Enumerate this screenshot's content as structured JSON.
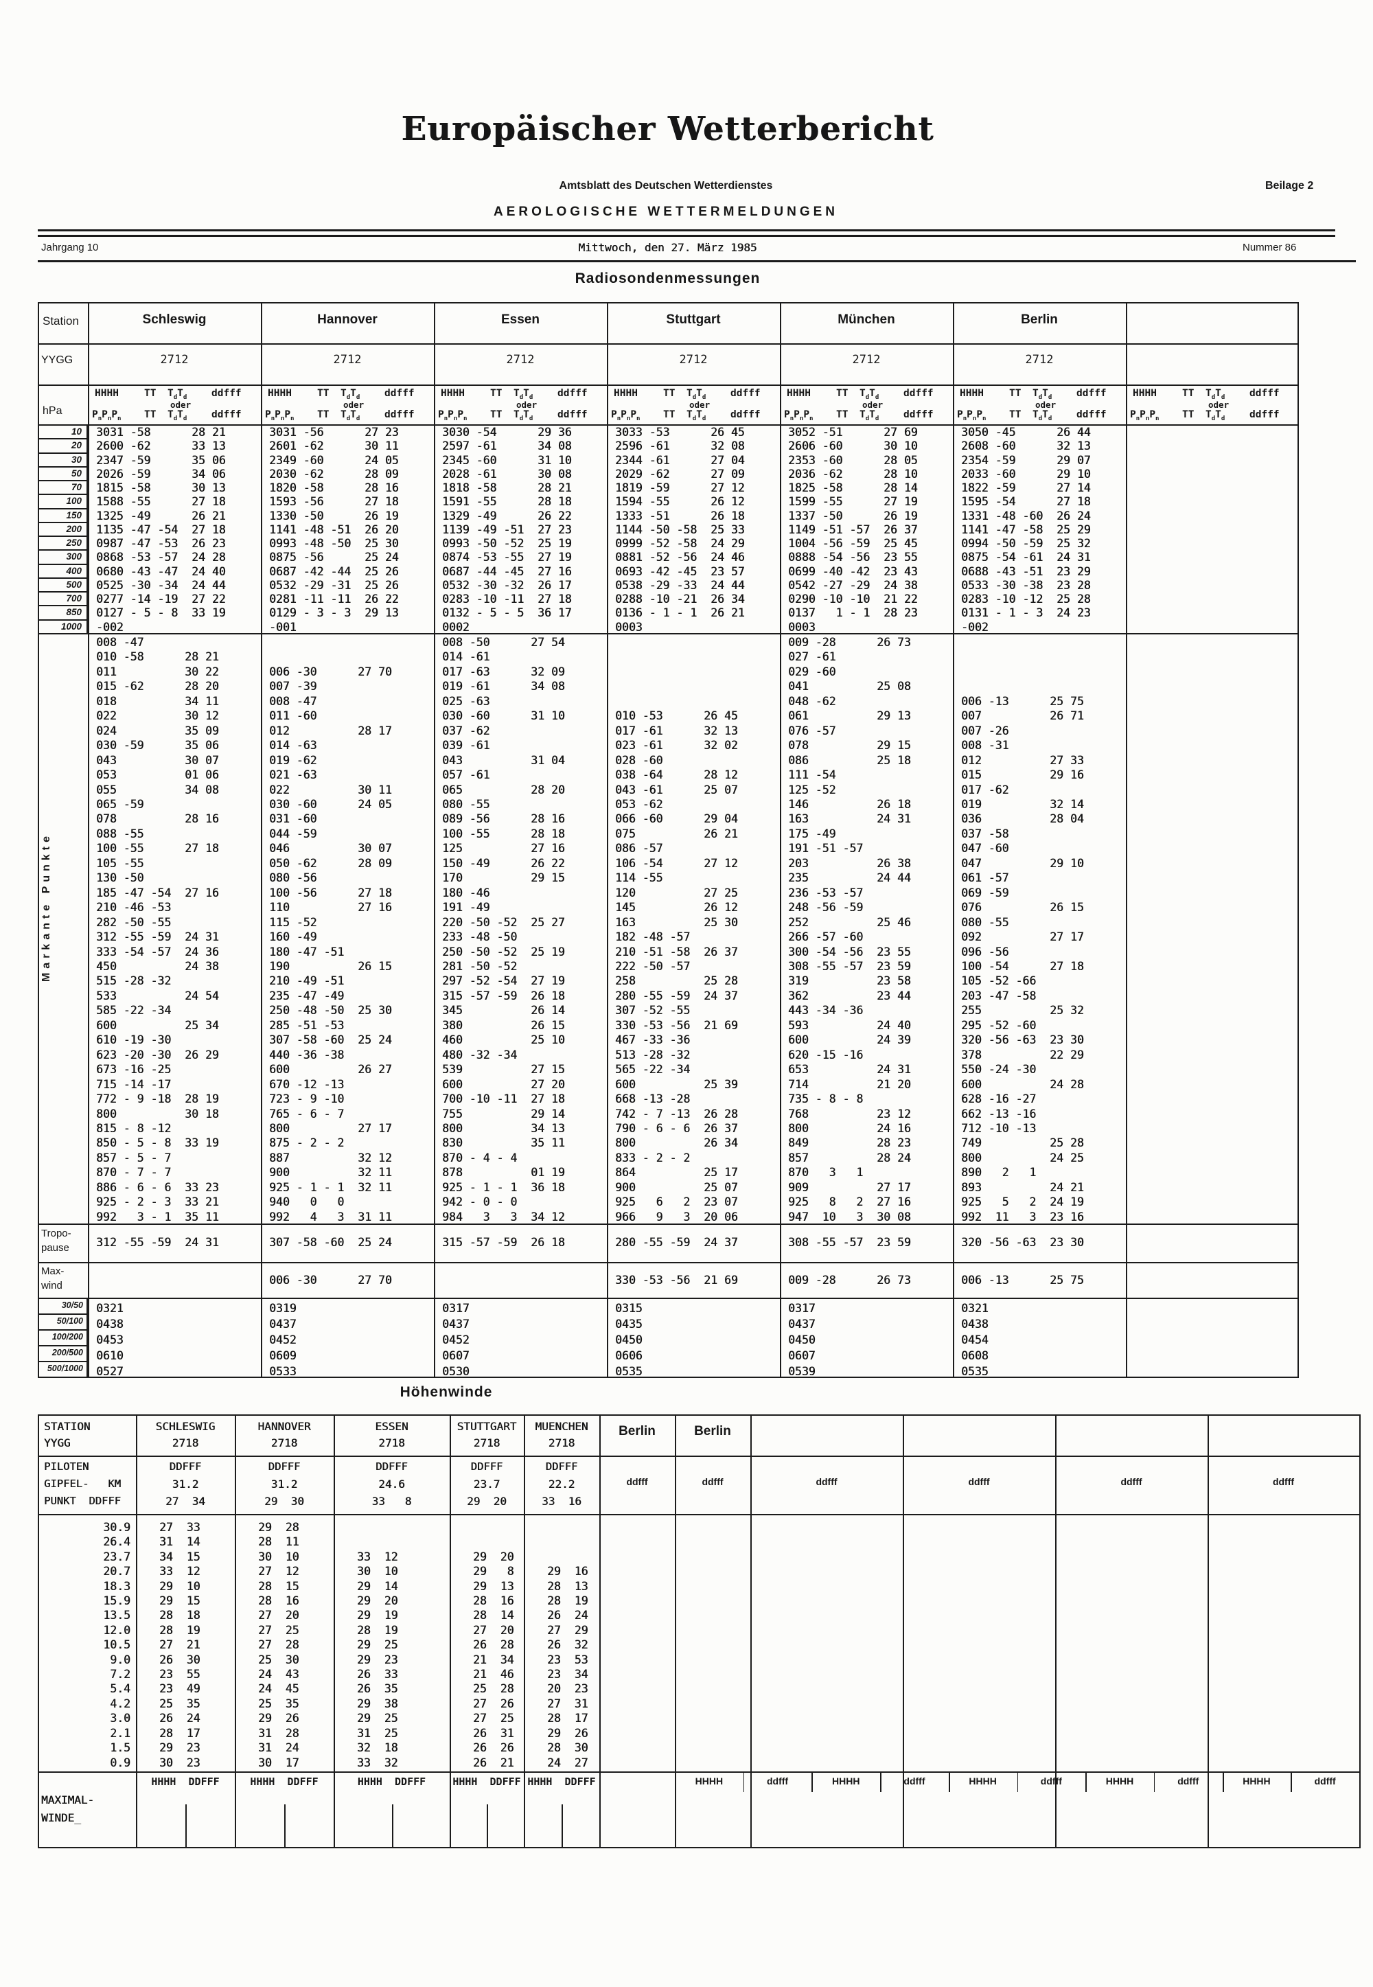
{
  "header": {
    "title": "Europäischer Wetterbericht",
    "subtitle": "Amtsblatt des Deutschen Wetterdienstes",
    "supplement": "Beilage 2",
    "section": "AEROLOGISCHE WETTERMELDUNGEN",
    "volume": "Jahrgang  10",
    "date": "Mittwoch, den 27. März 1985",
    "number": "Nummer  86"
  },
  "radiosonde": {
    "title": "Radiosondenmessungen",
    "station_label": "Station",
    "yygg_label": "YYGG",
    "hpa_label": "hPa",
    "col_header": {
      "line1": [
        "HHHH",
        "TT",
        "TdTd",
        "ddfff"
      ],
      "oder": "oder",
      "line2": [
        "PnPnPn",
        "TT",
        "TdTd",
        "ddfff"
      ]
    },
    "markante_label": "Markante Punkte",
    "tropopause_label": [
      "Tropo-",
      "pause"
    ],
    "maxwind_label": [
      "Max-",
      "wind"
    ],
    "pressure_levels": [
      "10",
      "20",
      "30",
      "50",
      "70",
      "100",
      "150",
      "200",
      "250",
      "300",
      "400",
      "500",
      "700",
      "850",
      "1000"
    ],
    "ratio_labels": [
      "30/50",
      "50/100",
      "100/200",
      "200/500",
      "500/1000"
    ],
    "stations": [
      {
        "name": "Schleswig",
        "yygg": "2712",
        "upper": [
          "3031 -58      28 21",
          "2600 -62      33 13",
          "2347 -59      35 06",
          "2026 -59      34 06",
          "1815 -58      30 13",
          "1588 -55      27 18",
          "1325 -49      26 21",
          "1135 -47 -54  27 18",
          "0987 -47 -53  26 23",
          "0868 -53 -57  24 28",
          "0680 -43 -47  24 40",
          "0525 -30 -34  24 44",
          "0277 -14 -19  27 22",
          "0127 - 5 - 8  33 19",
          "-002"
        ],
        "markante": [
          "008 -47",
          "010 -58      28 21",
          "011          30 22",
          "015 -62      28 20",
          "018          34 11",
          "022          30 12",
          "024          35 09",
          "030 -59      35 06",
          "043          30 07",
          "053          01 06",
          "055          34 08",
          "065 -59",
          "078          28 16",
          "088 -55",
          "100 -55      27 18",
          "105 -55",
          "130 -50",
          "185 -47 -54  27 16",
          "210 -46 -53",
          "282 -50 -55",
          "312 -55 -59  24 31",
          "333 -54 -57  24 36",
          "450          24 38",
          "515 -28 -32",
          "533          24 54",
          "585 -22 -34",
          "600          25 34",
          "610 -19 -30",
          "623 -20 -30  26 29",
          "673 -16 -25",
          "715 -14 -17",
          "772 - 9 -18  28 19",
          "800          30 18",
          "815 - 8 -12",
          "850 - 5 - 8  33 19",
          "857 - 5 - 7",
          "870 - 7 - 7",
          "886 - 6 - 6  33 23",
          "925 - 2 - 3  33 21",
          "992   3 - 1  35 11"
        ],
        "tropopause": "312 -55 -59  24 31",
        "maxwind": "",
        "ratios": [
          "0321",
          "0438",
          "0453",
          "0610",
          "0527"
        ]
      },
      {
        "name": "Hannover",
        "yygg": "2712",
        "upper": [
          "3031 -56      27 23",
          "2601 -62      30 11",
          "2349 -60      24 05",
          "2030 -62      28 09",
          "1820 -58      28 16",
          "1593 -56      27 18",
          "1330 -50      26 19",
          "1141 -48 -51  26 20",
          "0993 -48 -50  25 30",
          "0875 -56      25 24",
          "0687 -42 -44  25 26",
          "0532 -29 -31  25 26",
          "0281 -11 -11  26 22",
          "0129 - 3 - 3  29 13",
          "-001"
        ],
        "markante": [
          "",
          "",
          "006 -30      27 70",
          "007 -39",
          "008 -47",
          "011 -60",
          "012          28 17",
          "014 -63",
          "019 -62",
          "021 -63",
          "022          30 11",
          "030 -60      24 05",
          "031 -60",
          "044 -59",
          "046          30 07",
          "050 -62      28 09",
          "080 -56",
          "100 -56      27 18",
          "110          27 16",
          "115 -52",
          "160 -49",
          "180 -47 -51",
          "190          26 15",
          "210 -49 -51",
          "235 -47 -49",
          "250 -48 -50  25 30",
          "285 -51 -53",
          "307 -58 -60  25 24",
          "440 -36 -38",
          "600          26 27",
          "670 -12 -13",
          "723 - 9 -10",
          "765 - 6 - 7",
          "800          27 17",
          "875 - 2 - 2",
          "887          32 12",
          "900          32 11",
          "925 - 1 - 1  32 11",
          "940   0   0",
          "992   4   3  31 11"
        ],
        "tropopause": "307 -58 -60  25 24",
        "maxwind": "006 -30      27 70",
        "ratios": [
          "0319",
          "0437",
          "0452",
          "0609",
          "0533"
        ]
      },
      {
        "name": "Essen",
        "yygg": "2712",
        "upper": [
          "3030 -54      29 36",
          "2597 -61      34 08",
          "2345 -60      31 10",
          "2028 -61      30 08",
          "1818 -58      28 21",
          "1591 -55      28 18",
          "1329 -49      26 22",
          "1139 -49 -51  27 23",
          "0993 -50 -52  25 19",
          "0874 -53 -55  27 19",
          "0687 -44 -45  27 16",
          "0532 -30 -32  26 17",
          "0283 -10 -11  27 18",
          "0132 - 5 - 5  36 17",
          "0002"
        ],
        "markante": [
          "008 -50      27 54",
          "014 -61",
          "017 -63      32 09",
          "019 -61      34 08",
          "025 -63",
          "030 -60      31 10",
          "037 -62",
          "039 -61",
          "043          31 04",
          "057 -61",
          "065          28 20",
          "080 -55",
          "089 -56      28 16",
          "100 -55      28 18",
          "125          27 16",
          "150 -49      26 22",
          "170          29 15",
          "180 -46",
          "191 -49",
          "220 -50 -52  25 27",
          "233 -48 -50",
          "250 -50 -52  25 19",
          "281 -50 -52",
          "297 -52 -54  27 19",
          "315 -57 -59  26 18",
          "345          26 14",
          "380          26 15",
          "460          25 10",
          "480 -32 -34",
          "539          27 15",
          "600          27 20",
          "700 -10 -11  27 18",
          "755          29 14",
          "800          34 13",
          "830          35 11",
          "870 - 4 - 4",
          "878          01 19",
          "925 - 1 - 1  36 18",
          "942 - 0 - 0",
          "984   3   3  34 12"
        ],
        "tropopause": "315 -57 -59  26 18",
        "maxwind": "",
        "ratios": [
          "0317",
          "0437",
          "0452",
          "0607",
          "0530"
        ]
      },
      {
        "name": "Stuttgart",
        "yygg": "2712",
        "upper": [
          "3033 -53      26 45",
          "2596 -61      32 08",
          "2344 -61      27 04",
          "2029 -62      27 09",
          "1819 -59      27 12",
          "1594 -55      26 12",
          "1333 -51      26 18",
          "1144 -50 -58  25 33",
          "0999 -52 -58  24 29",
          "0881 -52 -56  24 46",
          "0693 -42 -45  23 57",
          "0538 -29 -33  24 44",
          "0288 -10 -21  26 34",
          "0136 - 1 - 1  26 21",
          "0003"
        ],
        "markante": [
          "",
          "",
          "",
          "",
          "",
          "010 -53      26 45",
          "017 -61      32 13",
          "023 -61      32 02",
          "028 -60",
          "038 -64      28 12",
          "043 -61      25 07",
          "053 -62",
          "066 -60      29 04",
          "075          26 21",
          "086 -57",
          "106 -54      27 12",
          "114 -55",
          "120          27 25",
          "145          26 12",
          "163          25 30",
          "182 -48 -57",
          "210 -51 -58  26 37",
          "222 -50 -57",
          "258          25 28",
          "280 -55 -59  24 37",
          "307 -52 -55",
          "330 -53 -56  21 69",
          "467 -33 -36",
          "513 -28 -32",
          "565 -22 -34",
          "600          25 39",
          "668 -13 -28",
          "742 - 7 -13  26 28",
          "790 - 6 - 6  26 37",
          "800          26 34",
          "833 - 2 - 2",
          "864          25 17",
          "900          25 07",
          "925   6   2  23 07",
          "966   9   3  20 06"
        ],
        "tropopause": "280 -55 -59  24 37",
        "maxwind": "330 -53 -56  21 69",
        "ratios": [
          "0315",
          "0435",
          "0450",
          "0606",
          "0535"
        ]
      },
      {
        "name": "München",
        "yygg": "2712",
        "upper": [
          "3052 -51      27 69",
          "2606 -60      30 10",
          "2353 -60      28 05",
          "2036 -62      28 10",
          "1825 -58      28 14",
          "1599 -55      27 19",
          "1337 -50      26 19",
          "1149 -51 -57  26 37",
          "1004 -56 -59  25 45",
          "0888 -54 -56  23 55",
          "0699 -40 -42  23 43",
          "0542 -27 -29  24 38",
          "0290 -10 -10  21 22",
          "0137   1 - 1  28 23",
          "0003"
        ],
        "markante": [
          "009 -28      26 73",
          "027 -61",
          "029 -60",
          "041          25 08",
          "048 -62",
          "061          29 13",
          "076 -57",
          "078          29 15",
          "086          25 18",
          "111 -54",
          "125 -52",
          "146          26 18",
          "163          24 31",
          "175 -49",
          "191 -51 -57",
          "203          26 38",
          "235          24 44",
          "236 -53 -57",
          "248 -56 -59",
          "252          25 46",
          "266 -57 -60",
          "300 -54 -56  23 55",
          "308 -55 -57  23 59",
          "319          23 58",
          "362          23 44",
          "443 -34 -36",
          "593          24 40",
          "600          24 39",
          "620 -15 -16",
          "653          24 31",
          "714          21 20",
          "735 - 8 - 8",
          "768          23 12",
          "800          24 16",
          "849          28 23",
          "857          28 24",
          "870   3   1",
          "909          27 17",
          "925   8   2  27 16",
          "947  10   3  30 08"
        ],
        "tropopause": "308 -55 -57  23 59",
        "maxwind": "009 -28      26 73",
        "ratios": [
          "0317",
          "0437",
          "0450",
          "0607",
          "0539"
        ]
      },
      {
        "name": "Berlin",
        "yygg": "2712",
        "upper": [
          "3050 -45      26 44",
          "2608 -60      32 13",
          "2354 -59      29 07",
          "2033 -60      29 10",
          "1822 -59      27 14",
          "1595 -54      27 18",
          "1331 -48 -60  26 24",
          "1141 -47 -58  25 29",
          "0994 -50 -59  25 32",
          "0875 -54 -61  24 31",
          "0688 -43 -51  23 29",
          "0533 -30 -38  23 28",
          "0283 -10 -12  25 28",
          "0131 - 1 - 3  24 23",
          "-002"
        ],
        "markante": [
          "",
          "",
          "",
          "",
          "006 -13      25 75",
          "007          26 71",
          "007 -26",
          "008 -31",
          "012          27 33",
          "015          29 16",
          "017 -62",
          "019          32 14",
          "036          28 04",
          "037 -58",
          "047 -60",
          "047          29 10",
          "061 -57",
          "069 -59",
          "076          26 15",
          "080 -55",
          "092          27 17",
          "096 -56",
          "100 -54      27 18",
          "105 -52 -66",
          "203 -47 -58",
          "255          25 32",
          "295 -52 -60",
          "320 -56 -63  23 30",
          "378          22 29",
          "550 -24 -30",
          "600          24 28",
          "628 -16 -27",
          "662 -13 -16",
          "712 -10 -13",
          "749          25 28",
          "800          24 25",
          "890   2   1",
          "893          24 21",
          "925   5   2  24 19",
          "992  11   3  23 16"
        ],
        "tropopause": "320 -56 -63  23 30",
        "maxwind": "006 -13      25 75",
        "ratios": [
          "0321",
          "0438",
          "0454",
          "0608",
          "0535"
        ]
      },
      {
        "name": "",
        "yygg": "",
        "upper": [],
        "markante": [],
        "tropopause": "",
        "maxwind": "",
        "ratios": []
      }
    ]
  },
  "hoehenwinde": {
    "title": "Höhenwinde",
    "station_label": "STATION",
    "yygg_label": "YYGG",
    "piloten_label": [
      "PILOTEN",
      "GIPFEL-   KM",
      "PUNKT  DDFFF"
    ],
    "stations": [
      {
        "name": "SCHLESWIG",
        "yygg": "2718",
        "ddfff_label": "DDFFF",
        "gipfel_km": "31.2",
        "gipfel_wind": "27  34"
      },
      {
        "name": "HANNOVER",
        "yygg": "2718",
        "ddfff_label": "DDFFF",
        "gipfel_km": "31.2",
        "gipfel_wind": "29  30"
      },
      {
        "name": "ESSEN",
        "yygg": "2718",
        "ddfff_label": "DDFFF",
        "gipfel_km": "24.6",
        "gipfel_wind": "33   8"
      },
      {
        "name": "STUTTGART",
        "yygg": "2718",
        "ddfff_label": "DDFFF",
        "gipfel_km": "23.7",
        "gipfel_wind": "29  20"
      },
      {
        "name": "MUENCHEN",
        "yygg": "2718",
        "ddfff_label": "DDFFF",
        "gipfel_km": "22.2",
        "gipfel_wind": "33  16"
      }
    ],
    "berlin_cols": [
      {
        "name": "Berlin",
        "ddfff": "ddfff"
      },
      {
        "name": "Berlin",
        "ddfff": "ddfff"
      }
    ],
    "extra_ddfff": [
      "ddfff",
      "ddfff",
      "ddfff",
      "ddfff"
    ],
    "altitudes": [
      "30.9",
      "26.4",
      "23.7",
      "20.7",
      "18.3",
      "15.9",
      "13.5",
      "12.0",
      "10.5",
      "9.0",
      "7.2",
      "5.4",
      "4.2",
      "3.0",
      "2.1",
      "1.5",
      "0.9"
    ],
    "winds": [
      [
        "27  33",
        "29  28",
        "",
        "",
        ""
      ],
      [
        "31  14",
        "28  11",
        "",
        "",
        ""
      ],
      [
        "34  15",
        "30  10",
        "33  12",
        "29  20",
        ""
      ],
      [
        "33  12",
        "27  12",
        "30  10",
        "29   8",
        "29  16"
      ],
      [
        "29  10",
        "28  15",
        "29  14",
        "29  13",
        "28  13"
      ],
      [
        "29  15",
        "28  16",
        "29  20",
        "28  16",
        "28  19"
      ],
      [
        "28  18",
        "27  20",
        "29  19",
        "28  14",
        "26  24"
      ],
      [
        "28  19",
        "27  25",
        "28  19",
        "27  20",
        "27  29"
      ],
      [
        "27  21",
        "27  28",
        "29  25",
        "26  28",
        "26  32"
      ],
      [
        "26  30",
        "25  30",
        "29  23",
        "21  34",
        "23  53"
      ],
      [
        "23  55",
        "24  43",
        "26  33",
        "21  46",
        "23  34"
      ],
      [
        "23  49",
        "24  45",
        "26  35",
        "25  28",
        "20  23"
      ],
      [
        "25  35",
        "25  35",
        "29  38",
        "27  26",
        "27  31"
      ],
      [
        "26  24",
        "29  26",
        "29  25",
        "27  25",
        "28  17"
      ],
      [
        "28  17",
        "31  28",
        "31  25",
        "26  31",
        "29  26"
      ],
      [
        "29  23",
        "31  24",
        "32  18",
        "26  26",
        "28  30"
      ],
      [
        "30  23",
        "30  17",
        "33  32",
        "26  21",
        "24  27"
      ]
    ],
    "maximal_label": [
      "MAXIMAL-",
      "WINDE_"
    ],
    "maximal_header": "HHHH  DDFFF",
    "maximal_pairs": [
      [
        "HHHH",
        "ddfff"
      ],
      [
        "HHHH",
        "ddfff"
      ],
      [
        "HHHH",
        "ddfff"
      ],
      [
        "HHHH",
        "ddfff"
      ],
      [
        "HHHH",
        "ddfff"
      ]
    ]
  }
}
